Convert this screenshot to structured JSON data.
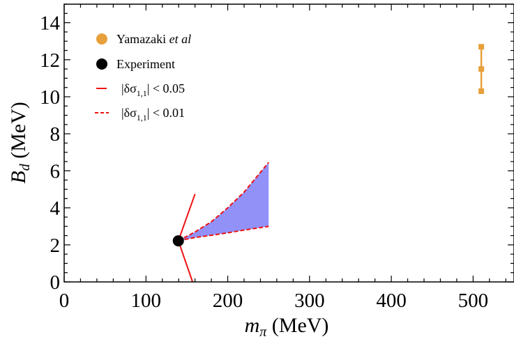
{
  "chart_data": {
    "type": "scatter",
    "xlabel": {
      "main": "m",
      "sub": "π",
      "unit": " (MeV)"
    },
    "ylabel": {
      "main": "B",
      "sub": "d",
      "unit": " (MeV)"
    },
    "xlim": [
      0,
      550
    ],
    "ylim": [
      0,
      15
    ],
    "x_ticks": [
      0,
      100,
      200,
      300,
      400,
      500
    ],
    "y_ticks": [
      0,
      2,
      4,
      6,
      8,
      10,
      12,
      14
    ],
    "grid": false,
    "legend_position": "top-left",
    "legend": [
      {
        "marker": "circle",
        "color": "#e8a03c",
        "text": "Yamazaki ",
        "italic": "et al"
      },
      {
        "marker": "circle",
        "color": "#000000",
        "text": "Experiment"
      },
      {
        "marker": "solid-line",
        "color": "#ee1111",
        "text": "|δσ",
        "sub": "1,1",
        "after": "| < 0.05"
      },
      {
        "marker": "dashed-line",
        "color": "#ee1111",
        "text": "|δσ",
        "sub": "1,1",
        "after": "| < 0.01"
      }
    ],
    "series": [
      {
        "name": "Yamazaki et al",
        "kind": "point-errorbar",
        "color": "#e8a03c",
        "points": [
          {
            "x": 510,
            "y": 11.5,
            "ylow": 10.3,
            "yhigh": 12.7
          }
        ]
      },
      {
        "name": "Experiment",
        "kind": "point",
        "color": "#000000",
        "points": [
          {
            "x": 139.6,
            "y": 2.22
          }
        ]
      },
      {
        "name": "|δσ1,1| < 0.05",
        "kind": "solid-line",
        "color": "#ee1111",
        "lines": [
          [
            {
              "x": 139.6,
              "y": 2.22
            },
            {
              "x": 160,
              "y": 4.75
            }
          ],
          [
            {
              "x": 139.6,
              "y": 2.22
            },
            {
              "x": 157,
              "y": 0
            }
          ]
        ]
      },
      {
        "name": "|δσ1,1| < 0.01",
        "kind": "dashed-band",
        "color": "#ee1111",
        "fill": "#9191f8",
        "upper": [
          {
            "x": 139.6,
            "y": 2.22
          },
          {
            "x": 160,
            "y": 2.7
          },
          {
            "x": 180,
            "y": 3.25
          },
          {
            "x": 200,
            "y": 4.0
          },
          {
            "x": 220,
            "y": 4.85
          },
          {
            "x": 250,
            "y": 6.45
          }
        ],
        "lower": [
          {
            "x": 139.6,
            "y": 2.22
          },
          {
            "x": 160,
            "y": 2.4
          },
          {
            "x": 180,
            "y": 2.52
          },
          {
            "x": 200,
            "y": 2.65
          },
          {
            "x": 220,
            "y": 2.8
          },
          {
            "x": 250,
            "y": 3.0
          }
        ]
      }
    ]
  }
}
